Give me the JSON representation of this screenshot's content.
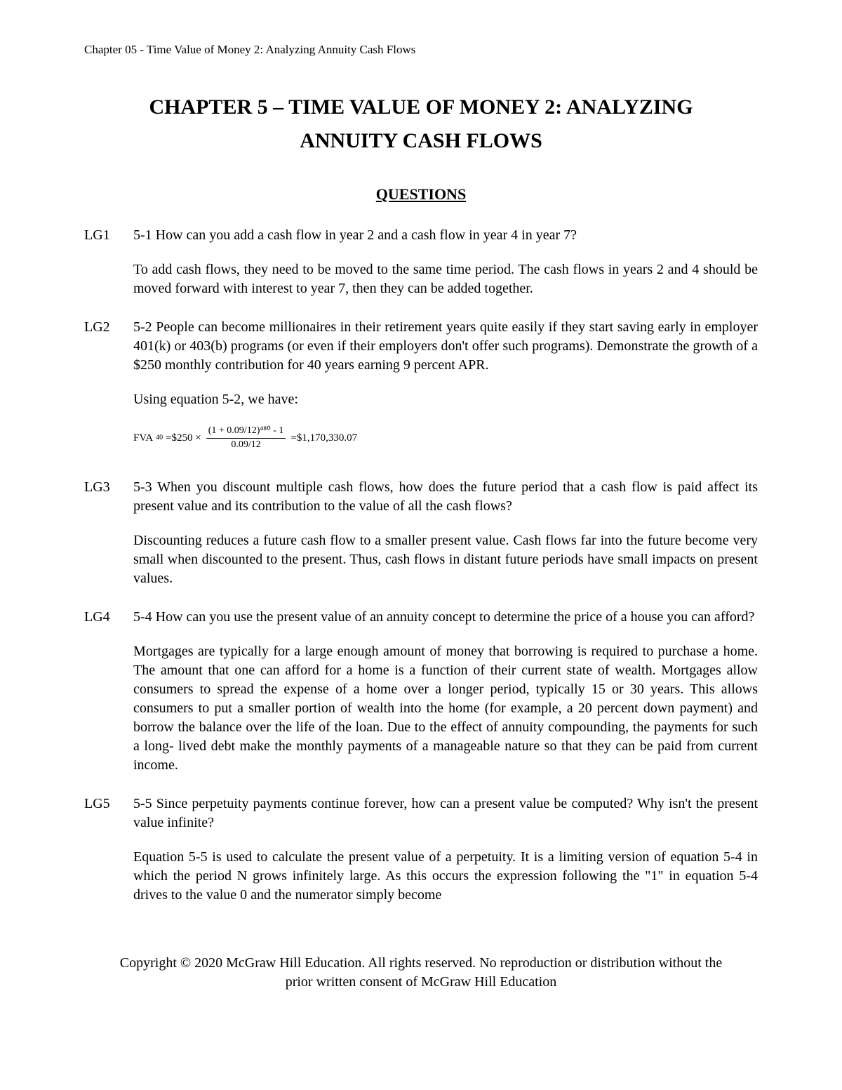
{
  "header": "Chapter 05 - Time Value of Money 2: Analyzing Annuity Cash Flows",
  "title_line1": "CHAPTER 5 – TIME VALUE OF MONEY 2: ANALYZING",
  "title_line2": "ANNUITY CASH FLOWS",
  "section_heading": "QUESTIONS",
  "questions": [
    {
      "label": "LG1",
      "q": "5-1 How can you add a cash flow in year 2 and a cash flow in year 4  in year 7?",
      "a": [
        "To add cash flows, they need to be moved to the same time period.  The cash flows in years 2 and 4 should be moved forward with interest to year 7, then they can be added together."
      ]
    },
    {
      "label": "LG2",
      "q": "5-2 People can become millionaires in their retirement years quite easily if they start saving early in employer 401(k) or 403(b) programs (or even if their employers don't offer such programs). Demonstrate the growth of a $250 monthly contribution for 40 years earning 9 percent APR.",
      "a": [
        "Using equation 5-2, we have:"
      ],
      "formula": {
        "prefix": "FVA",
        "sub": "40",
        "eq1": " =$250 ×",
        "frac_num": "(1 + 0.09/12)⁴⁸⁰ - 1",
        "frac_den": "0.09/12",
        "eq2": " =$1,170,330.07"
      }
    },
    {
      "label": "LG3",
      "q": "5-3 When you discount multiple cash flows, how does the future period that a cash flow is paid affect its present value and its contribution to the value of all the cash flows?",
      "a": [
        "Discounting reduces a future cash flow to a smaller present value.  Cash flows far into the future become very small when discounted to the present.  Thus, cash flows in distant future periods have small impacts on present values."
      ]
    },
    {
      "label": "LG4",
      "q": "5-4 How can you use the present value of an annuity concept to determine the price of a house you can afford?",
      "a": [
        "Mortgages are typically for a large enough amount of money that borrowing is required to purchase a home.  The amount that one can afford for a home is a function of their current state of wealth.  Mortgages allow consumers to spread the expense of a home over a longer period, typically 15 or 30 years.  This allows consumers to put a smaller portion of wealth into the home (for example, a 20 percent down payment) and borrow the balance over the life of the loan.  Due to the effect of annuity compounding, the payments for such a long- lived debt make the monthly payments of a manageable nature so that they can be paid from current income."
      ]
    },
    {
      "label": "LG5",
      "q": "5-5 Since perpetuity payments continue forever, how can a present value be computed? Why isn't the present value infinite?",
      "a": [
        "Equation 5-5 is used to calculate the present value of a perpetuity.  It is a limiting version of equation 5-4 in which the period N grows infinitely large.  As this occurs the expression following the \"1\" in equation 5-4 drives to the value 0 and the numerator simply become"
      ]
    }
  ],
  "copyright": "Copyright © 2020 McGraw Hill Education. All rights reserved. No reproduction or distribution without the prior written consent of McGraw Hill Education"
}
